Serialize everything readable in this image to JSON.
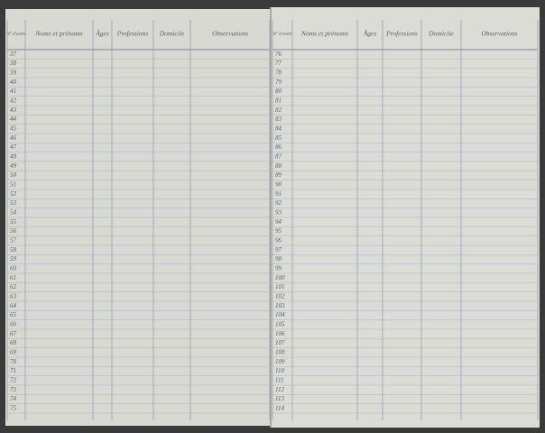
{
  "pages": [
    {
      "headers": [
        "N° d'ordre",
        "Noms et prénoms",
        "Âges",
        "Professions",
        "Domicile",
        "Observations"
      ],
      "rows": [
        37,
        38,
        39,
        40,
        41,
        42,
        43,
        44,
        45,
        46,
        47,
        48,
        49,
        50,
        51,
        52,
        53,
        54,
        55,
        56,
        57,
        58,
        59,
        60,
        61,
        62,
        63,
        64,
        65,
        66,
        67,
        68,
        69,
        70,
        71,
        72,
        73,
        74,
        75
      ]
    },
    {
      "headers": [
        "N° d'ordre",
        "Noms et prénoms",
        "Âges",
        "Professions",
        "Domicile",
        "Observations"
      ],
      "rows": [
        76,
        77,
        78,
        79,
        80,
        81,
        82,
        83,
        84,
        85,
        86,
        87,
        88,
        89,
        90,
        91,
        92,
        93,
        94,
        95,
        96,
        97,
        98,
        99,
        100,
        101,
        102,
        103,
        104,
        105,
        106,
        107,
        108,
        109,
        110,
        111,
        112,
        113,
        114
      ]
    }
  ]
}
